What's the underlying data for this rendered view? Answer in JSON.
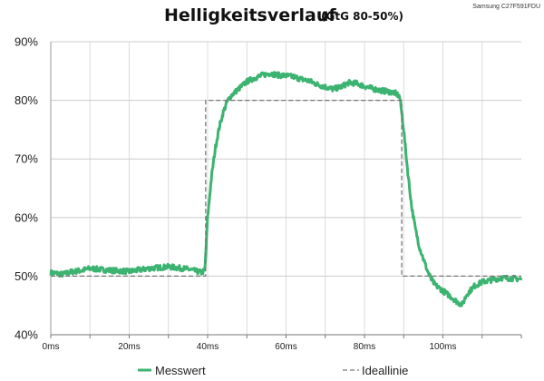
{
  "chart_data": {
    "type": "line",
    "title": "Helligkeitsverlauf",
    "subtitle": "(GtG 80-50%)",
    "corner_label": "Samsung C27F591FDU",
    "xlabel": "",
    "ylabel": "",
    "xlim": [
      0,
      120
    ],
    "ylim": [
      40,
      90
    ],
    "x_ticks": [
      0,
      20,
      40,
      60,
      80,
      100
    ],
    "x_tick_labels": [
      "0ms",
      "20ms",
      "40ms",
      "60ms",
      "80ms",
      "100ms"
    ],
    "y_ticks": [
      40,
      50,
      60,
      70,
      80,
      90
    ],
    "y_tick_labels": [
      "40%",
      "50%",
      "60%",
      "70%",
      "80%",
      "90%"
    ],
    "grid": {
      "x": true,
      "y": true
    },
    "legend_position": "bottom",
    "series": [
      {
        "name": "Messwert",
        "color": "#3cb371",
        "style": "solid-noisy",
        "x": [
          0,
          3,
          5,
          8,
          10,
          15,
          20,
          25,
          30,
          35,
          38.5,
          39.3,
          40,
          41,
          42,
          43,
          44,
          45,
          46,
          48,
          50,
          52,
          54,
          56,
          58,
          60,
          62,
          64,
          66,
          68,
          70,
          72,
          74,
          76,
          78,
          80,
          82,
          84,
          86,
          88,
          89,
          90,
          91,
          92,
          93,
          94,
          95,
          96,
          97,
          98,
          100,
          102,
          104,
          105,
          106,
          108,
          110,
          112,
          115,
          118,
          120
        ],
        "y": [
          50.6,
          50.3,
          50.7,
          51.0,
          51.3,
          51.0,
          50.8,
          51.3,
          51.6,
          51.2,
          50.6,
          51.0,
          60.0,
          67.0,
          72.0,
          75.5,
          78.0,
          79.8,
          80.8,
          82.0,
          83.2,
          83.8,
          84.3,
          84.6,
          84.3,
          84.2,
          84.0,
          83.6,
          83.3,
          82.7,
          82.3,
          81.9,
          82.3,
          83.0,
          82.9,
          82.4,
          82.0,
          81.7,
          81.5,
          81.2,
          80.6,
          75.0,
          68.0,
          62.0,
          58.0,
          55.0,
          53.0,
          51.0,
          49.5,
          48.5,
          47.5,
          46.5,
          45.4,
          45.2,
          46.8,
          48.3,
          49.0,
          49.3,
          49.7,
          49.6,
          49.5
        ]
      },
      {
        "name": "Ideallinie",
        "color": "#777777",
        "style": "dashed",
        "x": [
          0,
          39.5,
          39.5,
          89.5,
          89.5,
          120
        ],
        "y": [
          50,
          50,
          80,
          80,
          50,
          50
        ]
      }
    ]
  }
}
